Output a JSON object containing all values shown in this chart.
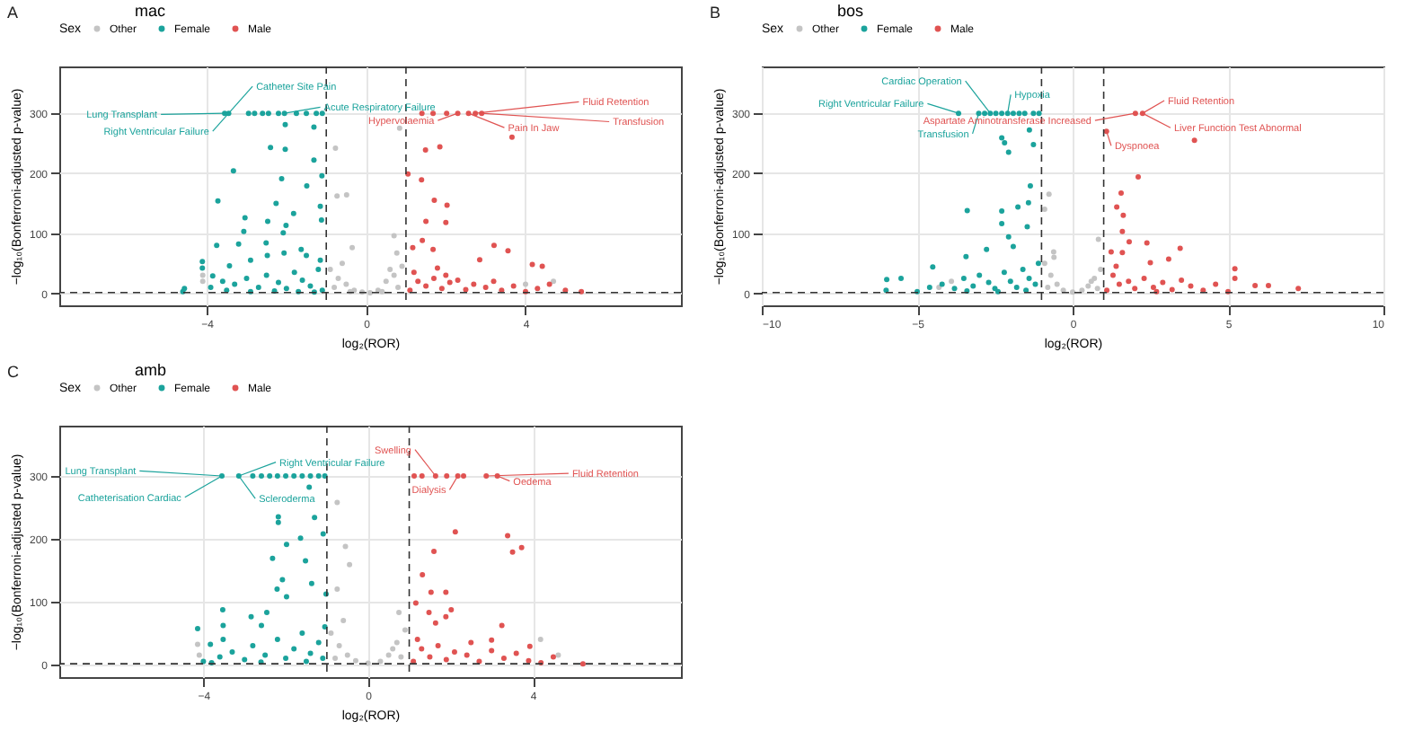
{
  "chart_data": [
    {
      "type": "scatter",
      "title": "mac",
      "xlabel": "log₂(ROR)",
      "ylabel": "−log₁₀(Bonferroni-adjusted p-value)",
      "legend_title": "Sex",
      "legend": "top",
      "grid": true,
      "marker": "circle",
      "xlim": [
        -7.7,
        7.9
      ],
      "xticks": [
        -4,
        0,
        4
      ],
      "ylim": [
        -20,
        378
      ],
      "yticks": [
        0,
        100,
        200,
        300
      ],
      "ref_lines": [
        {
          "axis": "x",
          "value": -1,
          "line_style": "dashed"
        },
        {
          "axis": "x",
          "value": 1,
          "line_style": "dashed"
        },
        {
          "axis": "y",
          "value": 1.3,
          "line_style": "dashed"
        }
      ],
      "annotations": [
        "A",
        {
          "text": "Catheter Site Pain",
          "x": -3.45,
          "y": 300
        },
        {
          "text": "Lung Transplant",
          "x": -3.55,
          "y": 300
        },
        {
          "text": "Right Ventricular Failure",
          "x": -3.45,
          "y": 300
        },
        {
          "text": "Acute Respiratory Failure",
          "x": -2.05,
          "y": 300
        },
        {
          "text": "Hypervolaemia",
          "x": 2.3,
          "y": 300
        },
        {
          "text": "Fluid Retention",
          "x": 2.74,
          "y": 300
        },
        {
          "text": "Pain In Jaw",
          "x": 2.57,
          "y": 300
        },
        {
          "text": "Transfusion",
          "x": 2.9,
          "y": 300
        }
      ],
      "series": [
        {
          "name": "Other",
          "color": "#c4c4c4",
          "x": [
            0.84,
            -0.77,
            -0.49,
            -0.73,
            -0.35,
            0.77,
            0.7,
            -0.9,
            -0.7,
            -0.5,
            -0.3,
            -0.1,
            0.1,
            0.3,
            0.5,
            0.7,
            0.9,
            -0.8,
            0.8,
            -0.6,
            0.6,
            -4.1,
            -4.1,
            4.0,
            4.7,
            0.4,
            -0.4
          ],
          "values": [
            275,
            242,
            164,
            162,
            76,
            67,
            96,
            40,
            25,
            15,
            5,
            2,
            1,
            5,
            20,
            30,
            45,
            10,
            10,
            50,
            40,
            20,
            30,
            15,
            20,
            3,
            3
          ]
        },
        {
          "name": "Female",
          "color": "#1ba39c",
          "x": [
            -3.55,
            -3.45,
            -2.95,
            -2.8,
            -2.6,
            -2.45,
            -2.2,
            -2.05,
            -1.75,
            -1.5,
            -1.25,
            -1.1,
            -2.03,
            -1.31,
            -2.4,
            -2.03,
            -1.31,
            -3.33,
            -2.12,
            -1.11,
            -1.49,
            -3.72,
            -2.26,
            -1.15,
            -1.82,
            -3.04,
            -1.12,
            -2.47,
            -2.01,
            -3.07,
            -2.08,
            -3.75,
            -2.51,
            -1.63,
            -3.2,
            -4.11,
            -4.11,
            -3.85,
            -3.43,
            -2.9,
            -2.48,
            -2.06,
            -1.5,
            -1.15,
            -4.6,
            -3.9,
            -3.6,
            -3.3,
            -3.0,
            -2.7,
            -2.5,
            -2.2,
            -2.0,
            -1.8,
            -1.6,
            -1.4,
            -1.2,
            -1.1,
            -3.5,
            -2.9,
            -2.3,
            -1.7,
            -1.3,
            -4.56
          ],
          "values": [
            300,
            300,
            300,
            300,
            300,
            300,
            300,
            300,
            300,
            300,
            300,
            300,
            281,
            277,
            243,
            240,
            222,
            204,
            191,
            196,
            179,
            154,
            150,
            145,
            133,
            126,
            122,
            120,
            113,
            103,
            101,
            80,
            84,
            73,
            82,
            53,
            42,
            29,
            46,
            55,
            63,
            67,
            63,
            55,
            3,
            10,
            20,
            15,
            25,
            10,
            30,
            18,
            8,
            35,
            22,
            12,
            40,
            5,
            5,
            3,
            4,
            3,
            2,
            8
          ]
        },
        {
          "name": "Male",
          "color": "#e05352",
          "x": [
            1.4,
            1.68,
            2.02,
            2.3,
            2.57,
            2.74,
            2.9,
            3.66,
            1.49,
            1.85,
            1.05,
            1.39,
            1.71,
            2.03,
            1.5,
            2.0,
            1.41,
            1.17,
            1.68,
            3.21,
            3.56,
            2.85,
            4.17,
            4.42,
            1.79,
            1.1,
            1.3,
            1.5,
            1.7,
            1.9,
            2.1,
            2.3,
            2.5,
            2.7,
            3.0,
            3.2,
            3.4,
            3.7,
            4.0,
            4.3,
            4.6,
            5.0,
            5.4,
            1.2,
            2.0
          ],
          "values": [
            300,
            300,
            300,
            300,
            300,
            300,
            300,
            260,
            239,
            244,
            199,
            189,
            155,
            147,
            120,
            118,
            88,
            76,
            73,
            80,
            71,
            56,
            48,
            45,
            42,
            5,
            20,
            12,
            25,
            8,
            18,
            22,
            6,
            15,
            10,
            20,
            5,
            12,
            3,
            8,
            15,
            5,
            3,
            35,
            30
          ]
        }
      ]
    },
    {
      "type": "scatter",
      "title": "bos",
      "xlabel": "log₂(ROR)",
      "ylabel": "−log₁₀(Bonferroni-adjusted p-value)",
      "legend_title": "Sex",
      "legend": "top",
      "grid": true,
      "marker": "circle",
      "xlim": [
        -10,
        10
      ],
      "xticks": [
        -10,
        -5,
        0,
        5,
        10
      ],
      "ylim": [
        -20,
        378
      ],
      "yticks": [
        0,
        100,
        200,
        300
      ],
      "ref_lines": [
        {
          "axis": "x",
          "value": -1,
          "line_style": "dashed"
        },
        {
          "axis": "x",
          "value": 1,
          "line_style": "dashed"
        },
        {
          "axis": "y",
          "value": 1.3,
          "line_style": "dashed"
        }
      ],
      "annotations": [
        "B",
        {
          "text": "Cardiac Operation",
          "x": -2.65,
          "y": 300
        },
        {
          "text": "Hypoxia",
          "x": -2.09,
          "y": 300
        },
        {
          "text": "Right Ventricular Failure",
          "x": -3.67,
          "y": 300
        },
        {
          "text": "Transfusion",
          "x": -3.02,
          "y": 300
        },
        {
          "text": "Aspartate Aminotransferase Increased",
          "x": 2.02,
          "y": 300
        },
        {
          "text": "Fluid Retention",
          "x": 2.25,
          "y": 300
        },
        {
          "text": "Liver Function Test Abnormal",
          "x": 2.25,
          "y": 300
        },
        {
          "text": "Dyspnoea",
          "x": 1.09,
          "y": 270
        }
      ],
      "series": [
        {
          "name": "Other",
          "color": "#c4c4c4",
          "x": [
            -0.76,
            -0.9,
            -0.61,
            0.83,
            -0.9,
            -0.7,
            -0.5,
            -0.3,
            0,
            0.3,
            0.5,
            0.7,
            0.9,
            -0.8,
            0.8,
            -4.3,
            -3.9,
            -0.6,
            0.6
          ],
          "values": [
            165,
            140,
            69,
            90,
            50,
            30,
            15,
            5,
            2,
            5,
            12,
            25,
            40,
            10,
            8,
            10,
            20,
            60,
            20
          ]
        },
        {
          "name": "Female",
          "color": "#1ba39c",
          "x": [
            -3.67,
            -3.02,
            -2.83,
            -2.65,
            -2.47,
            -2.28,
            -2.09,
            -1.91,
            -1.72,
            -1.54,
            -1.26,
            -1.08,
            -1.39,
            -2.28,
            -2.06,
            -2.19,
            -1.26,
            -1.36,
            -3.39,
            -2.28,
            -1.76,
            -1.42,
            -2.06,
            -2.28,
            -1.46,
            -3.43,
            -2.77,
            -1.91,
            -4.5,
            -5.98,
            -5.52,
            -6.0,
            -5.0,
            -4.6,
            -4.2,
            -3.8,
            -3.5,
            -3.2,
            -3.0,
            -2.7,
            -2.5,
            -2.2,
            -2.0,
            -1.8,
            -1.6,
            -1.4,
            -1.2,
            -1.1,
            -3.4,
            -2.4,
            -1.5
          ],
          "values": [
            300,
            300,
            300,
            300,
            300,
            300,
            300,
            300,
            300,
            300,
            300,
            300,
            272,
            259,
            235,
            251,
            248,
            179,
            138,
            137,
            144,
            151,
            94,
            116,
            111,
            61,
            73,
            78,
            44,
            23,
            25,
            5,
            3,
            10,
            15,
            8,
            25,
            12,
            30,
            18,
            8,
            35,
            20,
            10,
            40,
            25,
            15,
            50,
            4,
            3,
            5
          ]
        },
        {
          "name": "Male",
          "color": "#e05352",
          "x": [
            2.02,
            2.25,
            1.09,
            3.92,
            2.11,
            1.56,
            1.42,
            1.63,
            1.6,
            1.82,
            2.39,
            3.46,
            1.24,
            1.6,
            2.5,
            3.09,
            5.22,
            5.22,
            7.26,
            6.3,
            5.87,
            1.1,
            1.3,
            1.5,
            1.8,
            2.0,
            2.3,
            2.6,
            2.9,
            3.2,
            3.5,
            3.8,
            4.2,
            4.6,
            5.0,
            1.4,
            2.7
          ],
          "values": [
            300,
            300,
            270,
            255,
            194,
            167,
            144,
            130,
            103,
            86,
            84,
            75,
            69,
            68,
            51,
            57,
            41,
            25,
            8,
            13,
            13,
            5,
            30,
            15,
            20,
            8,
            25,
            10,
            18,
            6,
            22,
            12,
            5,
            15,
            3,
            45,
            3
          ]
        }
      ]
    },
    {
      "type": "scatter",
      "title": "amb",
      "xlabel": "log₂(ROR)",
      "ylabel": "−log₁₀(Bonferroni-adjusted p-value)",
      "legend_title": "Sex",
      "legend": "top",
      "grid": true,
      "marker": "circle",
      "xlim": [
        -7.5,
        7.6
      ],
      "xticks": [
        -4,
        0,
        4
      ],
      "ylim": [
        -20,
        380
      ],
      "yticks": [
        0,
        100,
        200,
        300
      ],
      "ref_lines": [
        {
          "axis": "x",
          "value": -1,
          "line_style": "dashed"
        },
        {
          "axis": "x",
          "value": 1,
          "line_style": "dashed"
        },
        {
          "axis": "y",
          "value": 1.3,
          "line_style": "dashed"
        }
      ],
      "annotations": [
        "C",
        {
          "text": "Lung Transplant",
          "x": -3.55,
          "y": 300
        },
        {
          "text": "Catheterisation Cardiac",
          "x": -3.55,
          "y": 300
        },
        {
          "text": "Right Ventricular Failure",
          "x": -3.14,
          "y": 300
        },
        {
          "text": "Scleroderma",
          "x": -3.14,
          "y": 300
        },
        {
          "text": "Swelling",
          "x": 1.64,
          "y": 300
        },
        {
          "text": "Dialysis",
          "x": 2.18,
          "y": 300
        },
        {
          "text": "Oedema",
          "x": 3.14,
          "y": 300
        },
        {
          "text": "Fluid Retention",
          "x": 2.87,
          "y": 300
        }
      ],
      "series": [
        {
          "name": "Other",
          "color": "#c4c4c4",
          "x": [
            -0.75,
            -0.55,
            -0.45,
            0.75,
            -0.75,
            4.19,
            -4.14,
            -0.9,
            -0.7,
            -0.5,
            -0.3,
            0,
            0.3,
            0.5,
            0.7,
            0.9,
            -0.8,
            0.8,
            4.62,
            -4.1,
            -0.6,
            0.6
          ],
          "values": [
            258,
            188,
            159,
            83,
            120,
            40,
            32,
            50,
            30,
            15,
            6,
            2,
            5,
            15,
            35,
            55,
            10,
            12,
            15,
            15,
            70,
            25
          ]
        },
        {
          "name": "Female",
          "color": "#1ba39c",
          "x": [
            -3.55,
            -3.14,
            -2.8,
            -2.59,
            -2.39,
            -2.2,
            -2.0,
            -1.8,
            -1.6,
            -1.4,
            -1.2,
            -1.05,
            -1.43,
            -2.18,
            -2.18,
            -1.3,
            -1.64,
            -1.09,
            -1.98,
            -2.32,
            -1.52,
            -1.37,
            -2.08,
            -2.21,
            -1.98,
            -1.02,
            -3.53,
            -2.84,
            -2.46,
            -2.59,
            -3.52,
            -4.14,
            -3.83,
            -3.52,
            -4.0,
            -3.6,
            -3.3,
            -3.0,
            -2.8,
            -2.5,
            -2.2,
            -2.0,
            -1.8,
            -1.6,
            -1.4,
            -1.2,
            -1.05,
            -3.8,
            -2.6,
            -1.5,
            -1.1
          ],
          "values": [
            300,
            300,
            300,
            300,
            300,
            300,
            300,
            300,
            300,
            300,
            300,
            300,
            282,
            235,
            226,
            234,
            201,
            208,
            191,
            169,
            165,
            129,
            135,
            120,
            108,
            112,
            87,
            76,
            83,
            62,
            62,
            57,
            32,
            40,
            5,
            12,
            20,
            8,
            30,
            15,
            40,
            10,
            25,
            50,
            18,
            35,
            60,
            3,
            4,
            5,
            10
          ]
        },
        {
          "name": "Male",
          "color": "#e05352",
          "x": [
            1.12,
            1.31,
            1.64,
            1.91,
            2.18,
            2.32,
            2.87,
            3.14,
            2.12,
            3.39,
            3.73,
            3.51,
            1.6,
            1.32,
            1.53,
            1.89,
            1.16,
            2.02,
            1.48,
            1.89,
            1.64,
            3.25,
            3.0,
            3.93,
            5.22,
            1.1,
            1.3,
            1.5,
            1.7,
            1.9,
            2.1,
            2.4,
            2.7,
            3.0,
            3.3,
            3.6,
            3.9,
            4.2,
            4.5,
            2.5,
            1.2
          ],
          "values": [
            300,
            300,
            300,
            300,
            300,
            300,
            300,
            300,
            211,
            205,
            186,
            179,
            180,
            143,
            115,
            115,
            98,
            87,
            83,
            76,
            66,
            62,
            39,
            29,
            1,
            5,
            25,
            12,
            30,
            8,
            20,
            15,
            5,
            22,
            10,
            18,
            6,
            3,
            12,
            35,
            40
          ]
        }
      ]
    }
  ]
}
